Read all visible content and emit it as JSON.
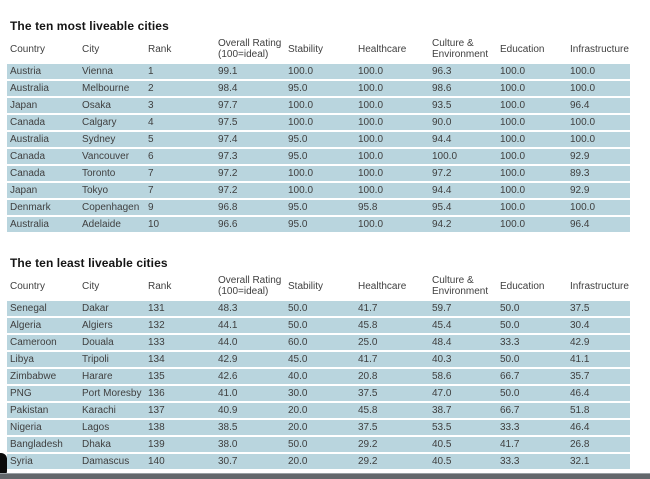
{
  "colors": {
    "row_bg": "#b9d5de",
    "page_bg": "#ffffff",
    "text": "#3f3f3f",
    "title": "#151515",
    "bottom_bar": "#63676b",
    "corner_mark": "#0b0b0b"
  },
  "chart_data": [
    {
      "type": "table",
      "title": "The ten most liveable cities",
      "columns": [
        "Country",
        "City",
        "Rank",
        "Overall Rating\n(100=ideal)",
        "Stability",
        "Healthcare",
        "Culture &\nEnvironment",
        "Education",
        "Infrastructure"
      ],
      "rows": [
        [
          "Austria",
          "Vienna",
          "1",
          "99.1",
          "100.0",
          "100.0",
          "96.3",
          "100.0",
          "100.0"
        ],
        [
          "Australia",
          "Melbourne",
          "2",
          "98.4",
          "95.0",
          "100.0",
          "98.6",
          "100.0",
          "100.0"
        ],
        [
          "Japan",
          "Osaka",
          "3",
          "97.7",
          "100.0",
          "100.0",
          "93.5",
          "100.0",
          "96.4"
        ],
        [
          "Canada",
          "Calgary",
          "4",
          "97.5",
          "100.0",
          "100.0",
          "90.0",
          "100.0",
          "100.0"
        ],
        [
          "Australia",
          "Sydney",
          "5",
          "97.4",
          "95.0",
          "100.0",
          "94.4",
          "100.0",
          "100.0"
        ],
        [
          "Canada",
          "Vancouver",
          "6",
          "97.3",
          "95.0",
          "100.0",
          "100.0",
          "100.0",
          "92.9"
        ],
        [
          "Canada",
          "Toronto",
          "7",
          "97.2",
          "100.0",
          "100.0",
          "97.2",
          "100.0",
          "89.3"
        ],
        [
          "Japan",
          "Tokyo",
          "7",
          "97.2",
          "100.0",
          "100.0",
          "94.4",
          "100.0",
          "92.9"
        ],
        [
          "Denmark",
          "Copenhagen",
          "9",
          "96.8",
          "95.0",
          "95.8",
          "95.4",
          "100.0",
          "100.0"
        ],
        [
          "Australia",
          "Adelaide",
          "10",
          "96.6",
          "95.0",
          "100.0",
          "94.2",
          "100.0",
          "96.4"
        ]
      ]
    },
    {
      "type": "table",
      "title": "The ten least liveable cities",
      "columns": [
        "Country",
        "City",
        "Rank",
        "Overall Rating\n(100=ideal)",
        "Stability",
        "Healthcare",
        "Culture &\nEnvironment",
        "Education",
        "Infrastructure"
      ],
      "rows": [
        [
          "Senegal",
          "Dakar",
          "131",
          "48.3",
          "50.0",
          "41.7",
          "59.7",
          "50.0",
          "37.5"
        ],
        [
          "Algeria",
          "Algiers",
          "132",
          "44.1",
          "50.0",
          "45.8",
          "45.4",
          "50.0",
          "30.4"
        ],
        [
          "Cameroon",
          "Douala",
          "133",
          "44.0",
          "60.0",
          "25.0",
          "48.4",
          "33.3",
          "42.9"
        ],
        [
          "Libya",
          "Tripoli",
          "134",
          "42.9",
          "45.0",
          "41.7",
          "40.3",
          "50.0",
          "41.1"
        ],
        [
          "Zimbabwe",
          "Harare",
          "135",
          "42.6",
          "40.0",
          "20.8",
          "58.6",
          "66.7",
          "35.7"
        ],
        [
          "PNG",
          "Port Moresby",
          "136",
          "41.0",
          "30.0",
          "37.5",
          "47.0",
          "50.0",
          "46.4"
        ],
        [
          "Pakistan",
          "Karachi",
          "137",
          "40.9",
          "20.0",
          "45.8",
          "38.7",
          "66.7",
          "51.8"
        ],
        [
          "Nigeria",
          "Lagos",
          "138",
          "38.5",
          "20.0",
          "37.5",
          "53.5",
          "33.3",
          "46.4"
        ],
        [
          "Bangladesh",
          "Dhaka",
          "139",
          "38.0",
          "50.0",
          "29.2",
          "40.5",
          "41.7",
          "26.8"
        ],
        [
          "Syria",
          "Damascus",
          "140",
          "30.7",
          "20.0",
          "29.2",
          "40.5",
          "33.3",
          "32.1"
        ]
      ]
    }
  ]
}
